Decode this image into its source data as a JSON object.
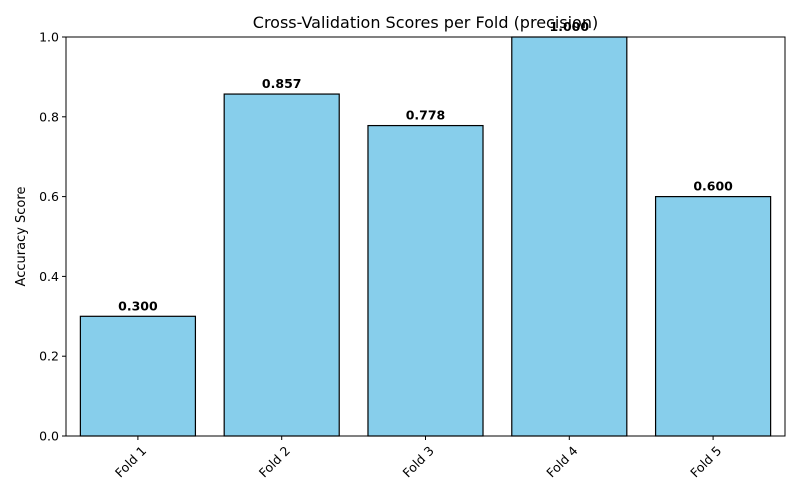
{
  "chart_data": {
    "type": "bar",
    "title": "Cross-Validation Scores per Fold (precision)",
    "xlabel": "",
    "ylabel": "Accuracy Score",
    "categories": [
      "Fold 1",
      "Fold 2",
      "Fold 3",
      "Fold 4",
      "Fold 5"
    ],
    "values": [
      0.3,
      0.857,
      0.778,
      1.0,
      0.6
    ],
    "data_labels": [
      "0.300",
      "0.857",
      "0.778",
      "1.000",
      "0.600"
    ],
    "ylim": [
      0,
      1.0
    ],
    "yticks": [
      "0.0",
      "0.2",
      "0.4",
      "0.6",
      "0.8",
      "1.0"
    ],
    "bar_color": "#87CEEB",
    "bar_edge_color": "#000000",
    "grid": false,
    "legend": "none"
  }
}
